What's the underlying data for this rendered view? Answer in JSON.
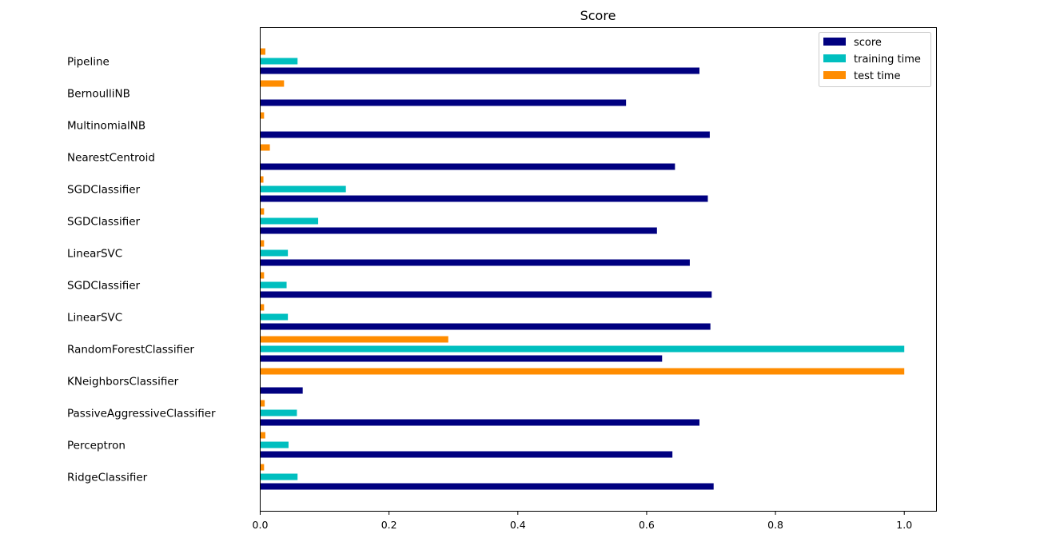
{
  "chart_data": {
    "type": "bar",
    "orientation": "horizontal",
    "title": "Score",
    "xlabel": "",
    "ylabel": "",
    "xlim": [
      0,
      1.05
    ],
    "xticks": [
      "0.0",
      "0.2",
      "0.4",
      "0.6",
      "0.8",
      "1.0"
    ],
    "grid": false,
    "legend_position": "top-right",
    "categories": [
      "RidgeClassifier",
      "Perceptron",
      "PassiveAggressiveClassifier",
      "KNeighborsClassifier",
      "RandomForestClassifier",
      "LinearSVC",
      "SGDClassifier",
      "LinearSVC",
      "SGDClassifier",
      "SGDClassifier",
      "NearestCentroid",
      "MultinomialNB",
      "BernoulliNB",
      "Pipeline"
    ],
    "series": [
      {
        "name": "score",
        "color": "#000080",
        "values": [
          0.704,
          0.64,
          0.682,
          0.066,
          0.624,
          0.699,
          0.701,
          0.667,
          0.616,
          0.695,
          0.644,
          0.698,
          0.568,
          0.682
        ]
      },
      {
        "name": "training time",
        "color": "#00bfbf",
        "values": [
          0.058,
          0.044,
          0.057,
          0.0,
          1.0,
          0.043,
          0.041,
          0.043,
          0.09,
          0.133,
          0.0,
          0.0,
          0.0,
          0.058
        ]
      },
      {
        "name": "test time",
        "color": "#ff8c00",
        "values": [
          0.006,
          0.008,
          0.007,
          1.0,
          0.292,
          0.006,
          0.006,
          0.006,
          0.006,
          0.005,
          0.015,
          0.006,
          0.037,
          0.008
        ]
      }
    ]
  }
}
